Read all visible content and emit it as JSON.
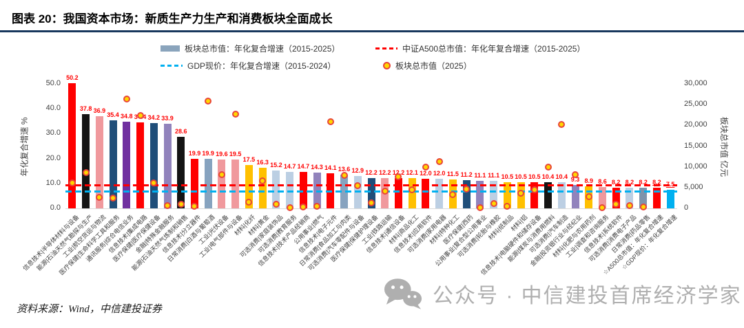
{
  "header": {
    "title": "图表 20：我国资本市场：新质生产力生产和消费板块全面成长"
  },
  "legend": {
    "items": [
      {
        "label": "板块总市值：年化复合增速（2015-2025）",
        "marker": "bar-swatch",
        "color": "#8AA4BC"
      },
      {
        "label": "中证A500总市值：年化年复合增速（2015-2025）",
        "marker": "red-dashed-line",
        "color": "#FF0000"
      },
      {
        "label": "GDP现价：年化复合增速（2015-2024）",
        "marker": "blue-dashed-line",
        "color": "#00B0F0"
      },
      {
        "label": "板块总市值（2025）",
        "marker": "orange-dot",
        "color": "#FFD700"
      }
    ]
  },
  "chart_data": {
    "type": "bar",
    "title": "我国资本市场：新质生产力生产和消费板块全面成长",
    "ylabel_left": "年化复合增速 %",
    "ylabel_right": "板块总市值 亿元",
    "ylim_left": [
      0,
      50
    ],
    "ylim_right": [
      0,
      30000
    ],
    "yticks_left": [
      {
        "v": 0,
        "t": "0.0"
      },
      {
        "v": 10,
        "t": "10.0"
      },
      {
        "v": 20,
        "t": "20.0"
      },
      {
        "v": 30,
        "t": "30.0"
      },
      {
        "v": 40,
        "t": "40.0"
      },
      {
        "v": 50,
        "t": "50.0"
      }
    ],
    "yticks_right": [
      {
        "v": 0,
        "t": "0"
      },
      {
        "v": 5000,
        "t": "5,000"
      },
      {
        "v": 10000,
        "t": "10,000"
      },
      {
        "v": 15000,
        "t": "15,000"
      },
      {
        "v": 20000,
        "t": "20,000"
      },
      {
        "v": 25000,
        "t": "25,000"
      },
      {
        "v": 30000,
        "t": "30,000"
      }
    ],
    "grid": false,
    "legend_position": "top",
    "categories": [
      "信息技术|半导体材料与设备",
      "能源|石油天然气勘探与生产",
      "工业|航空货运与物流",
      "医疗保健|生命科学工具和服务",
      "通讯服务|综合电信业务",
      "信息技术|集成电路",
      "医疗保健|医疗保健设备",
      "金融|特殊金融服务",
      "能源|石油天然气炼制和销售",
      "信息技术|分立器件",
      "日常消费|白酒与葡萄酒",
      "工业|光伏设备",
      "工业|电气部件与设备",
      "材料|化纤",
      "材料|黄金",
      "可选消费|家庭装饰品",
      "可选消费|教育服务",
      "信息技术|技术产品经销商",
      "公用事业|燃气",
      "信息技术|电子元件",
      "日常消费|食品加工与肉类",
      "可选消费|汽车零配件与设备",
      "医疗保健|保健护理设备",
      "工业|铁路运输",
      "信息技术|通信设备",
      "材料|商品化工",
      "信息技术|应用软件",
      "可选消费|家用电器",
      "材料|特种化工",
      "医疗保健|西药",
      "公用事业|复合型公用事业",
      "可选消费|轮胎与橡胶",
      "材料|纸制品",
      "材料|铝",
      "信息技术|电脑硬件和储存设备",
      "能源|煤炭与消费用燃料",
      "可选消费|汽车制造",
      "金融|投资银行业与经纪业",
      "材料|化肥与农用药剂",
      "工业|调查和咨询服务",
      "信息技术|系统软件",
      "可选消费|消费电子产品",
      "日常消费|药品零售",
      "☆A500总市值：年化复合增速",
      "☆GDP现价：年化复合增速"
    ],
    "series": [
      {
        "name": "板块总市值：年化复合增速（2015-2025）",
        "unit": "%",
        "values": [
          50.2,
          37.8,
          36.9,
          35.4,
          34.8,
          34.4,
          34.2,
          33.9,
          28.6,
          19.9,
          19.9,
          19.6,
          19.5,
          17.5,
          16.3,
          15.2,
          14.7,
          14.7,
          14.3,
          14.1,
          13.6,
          12.9,
          12.2,
          12.2,
          12.2,
          12.1,
          12.0,
          12.0,
          11.5,
          11.2,
          11.1,
          11.1,
          10.5,
          10.5,
          10.5,
          10.4,
          10.4,
          9.3,
          8.9,
          8.6,
          8.2,
          8.2,
          8.2,
          8.2,
          7.5
        ]
      },
      {
        "name": "板块总市值（2025）",
        "unit": "亿元",
        "values": [
          6100,
          8700,
          2700,
          2500,
          26300,
          22400,
          6100,
          700,
          1000,
          450,
          25800,
          8200,
          22700,
          1500,
          6700,
          950,
          200,
          250,
          450,
          20900,
          7900,
          5500,
          1400,
          4100,
          7700,
          4500,
          9900,
          11200,
          3300,
          4700,
          200,
          1200,
          450,
          3600,
          4400,
          10000,
          20200,
          8100,
          2800,
          200,
          1000,
          700,
          350,
          null,
          null
        ]
      }
    ],
    "bar_colors": [
      "red",
      "black",
      "pink",
      "navy",
      "purple",
      "red",
      "navy",
      "mauve",
      "black",
      "red",
      "steel",
      "pink",
      "pink",
      "gold",
      "gold",
      "lightblue",
      "lightblue",
      "red",
      "mauve",
      "red",
      "steel",
      "lightblue",
      "navy",
      "pink",
      "red",
      "gold",
      "red",
      "lightblue",
      "gold",
      "navy",
      "mauve",
      "lightblue",
      "gold",
      "gold",
      "red",
      "black",
      "lightblue",
      "mauve",
      "gold",
      "pink",
      "red",
      "lightblue",
      "grayblue",
      "red",
      "cyan"
    ],
    "palette": {
      "red": "#FF0000",
      "black": "#141414",
      "pink": "#F0999D",
      "navy": "#1F4E79",
      "purple": "#7030A0",
      "mauve": "#9183BC",
      "steel": "#87A3BF",
      "lightblue": "#BCCFE3",
      "gold": "#FFC000",
      "grayblue": "#7E93AB",
      "cyan": "#00B0F0"
    },
    "underline_label_indices": [
      43,
      44
    ],
    "reference_lines": [
      {
        "label": "中证A500总市值：年化年复合增速（2015-2025）",
        "value": 8.2,
        "color": "#FF0000"
      },
      {
        "label": "GDP现价：年化复合增速（2015-2024）",
        "value": 7.5,
        "color": "#00B0F0"
      }
    ]
  },
  "footer": {
    "source": "资料来源：Wind，中信建投证券"
  },
  "watermark": {
    "text": "公众号 · 中信建投首席经济学家"
  }
}
